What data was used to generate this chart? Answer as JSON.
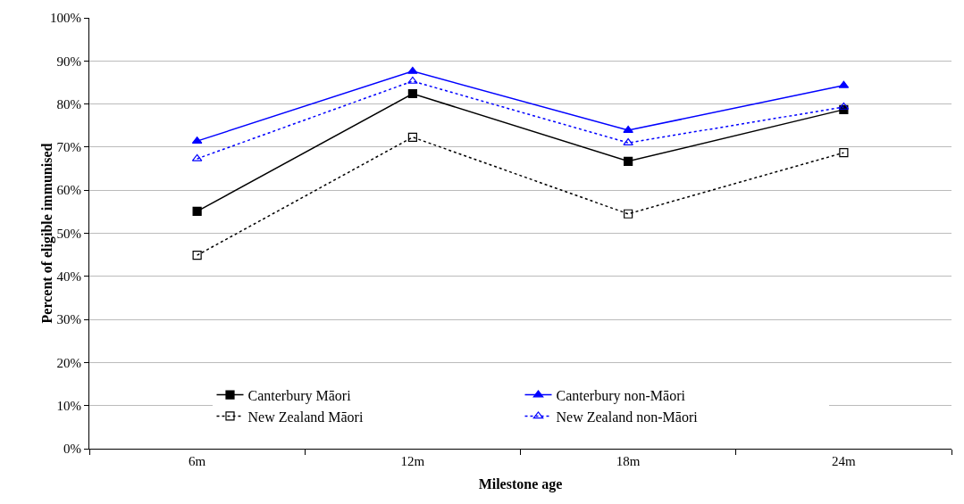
{
  "chart_data": {
    "type": "line",
    "xlabel": "Milestone age",
    "ylabel": "Percent of eligible immunised",
    "categories": [
      "6m",
      "12m",
      "18m",
      "24m"
    ],
    "series": [
      {
        "name": "Canterbury Māori",
        "color": "#000000",
        "marker": "square",
        "line_style": "solid",
        "values": [
          55.1,
          82.4,
          66.7,
          78.7
        ]
      },
      {
        "name": "Canterbury non-Māori",
        "color": "#0000ff",
        "marker": "triangle",
        "line_style": "solid",
        "values": [
          71.4,
          87.6,
          73.9,
          84.3
        ]
      },
      {
        "name": "New Zealand Māori",
        "color": "#000000",
        "marker": "square",
        "line_style": "dotted",
        "values": [
          44.9,
          72.3,
          54.5,
          68.7
        ]
      },
      {
        "name": "New Zealand non-Māori",
        "color": "#0000ff",
        "marker": "triangle",
        "line_style": "dotted",
        "values": [
          67.3,
          85.3,
          71.0,
          79.3
        ]
      }
    ],
    "ylim": [
      0,
      100
    ],
    "yticks": [
      {
        "value": 0,
        "label": "0%"
      },
      {
        "value": 10,
        "label": "10%"
      },
      {
        "value": 20,
        "label": "20%"
      },
      {
        "value": 30,
        "label": "30%"
      },
      {
        "value": 40,
        "label": "40%"
      },
      {
        "value": 50,
        "label": "50%"
      },
      {
        "value": 60,
        "label": "60%"
      },
      {
        "value": 70,
        "label": "70%"
      },
      {
        "value": 80,
        "label": "80%"
      },
      {
        "value": 90,
        "label": "90%"
      },
      {
        "value": 100,
        "label": "100%"
      }
    ],
    "grid": "y",
    "legend": "bottom"
  }
}
